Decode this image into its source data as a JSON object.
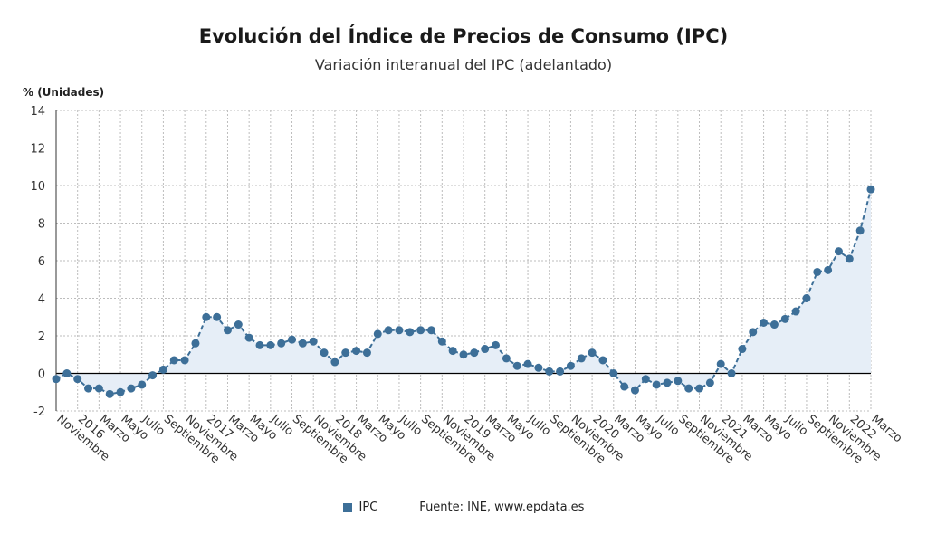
{
  "header": {
    "title": "Evolución del Índice de Precios de Consumo (IPC)",
    "subtitle": "Variación interanual del IPC (adelantado)"
  },
  "footer": {
    "legend_label": "IPC",
    "source": "Fuente: INE, www.epdata.es"
  },
  "colors": {
    "series": "#3d6f98",
    "area": "#e6eef7",
    "zero_line": "#000000",
    "grid": "#bdbdbd"
  },
  "chart_data": {
    "type": "area",
    "title": "Evolución del Índice de Precios de Consumo (IPC)",
    "subtitle": "Variación interanual del IPC (adelantado)",
    "ylabel": "% (Unidades)",
    "xlabel": "",
    "ylim": [
      -2,
      14
    ],
    "yticks": [
      -2,
      0,
      2,
      4,
      6,
      8,
      10,
      12,
      14
    ],
    "grid": true,
    "legend": "bottom-center",
    "x_tick_labels": [
      "Noviembre",
      "2016",
      "Marzo",
      "Mayo",
      "Julio",
      "Septiembre",
      "Noviembre",
      "2017",
      "Marzo",
      "Mayo",
      "Julio",
      "Septiembre",
      "Noviembre",
      "2018",
      "Marzo",
      "Mayo",
      "Julio",
      "Septiembre",
      "Noviembre",
      "2019",
      "Marzo",
      "Mayo",
      "Julio",
      "Septiembre",
      "Noviembre",
      "2020",
      "Marzo",
      "Mayo",
      "Julio",
      "Septiembre",
      "Noviembre",
      "2021",
      "Marzo",
      "Mayo",
      "Julio",
      "Septiembre",
      "Noviembre",
      "2022",
      "Marzo"
    ],
    "x": [
      "2015-11",
      "2015-12",
      "2016-01",
      "2016-02",
      "2016-03",
      "2016-04",
      "2016-05",
      "2016-06",
      "2016-07",
      "2016-08",
      "2016-09",
      "2016-10",
      "2016-11",
      "2016-12",
      "2017-01",
      "2017-02",
      "2017-03",
      "2017-04",
      "2017-05",
      "2017-06",
      "2017-07",
      "2017-08",
      "2017-09",
      "2017-10",
      "2017-11",
      "2017-12",
      "2018-01",
      "2018-02",
      "2018-03",
      "2018-04",
      "2018-05",
      "2018-06",
      "2018-07",
      "2018-08",
      "2018-09",
      "2018-10",
      "2018-11",
      "2018-12",
      "2019-01",
      "2019-02",
      "2019-03",
      "2019-04",
      "2019-05",
      "2019-06",
      "2019-07",
      "2019-08",
      "2019-09",
      "2019-10",
      "2019-11",
      "2019-12",
      "2020-01",
      "2020-02",
      "2020-03",
      "2020-04",
      "2020-05",
      "2020-06",
      "2020-07",
      "2020-08",
      "2020-09",
      "2020-10",
      "2020-11",
      "2020-12",
      "2021-01",
      "2021-02",
      "2021-03",
      "2021-04",
      "2021-05",
      "2021-06",
      "2021-07",
      "2021-08",
      "2021-09",
      "2021-10",
      "2021-11",
      "2021-12",
      "2022-01",
      "2022-02",
      "2022-03"
    ],
    "series": [
      {
        "name": "IPC",
        "values": [
          -0.3,
          0.0,
          -0.3,
          -0.8,
          -0.8,
          -1.1,
          -1.0,
          -0.8,
          -0.6,
          -0.1,
          0.2,
          0.7,
          0.7,
          1.6,
          3.0,
          3.0,
          2.3,
          2.6,
          1.9,
          1.5,
          1.5,
          1.6,
          1.8,
          1.6,
          1.7,
          1.1,
          0.6,
          1.1,
          1.2,
          1.1,
          2.1,
          2.3,
          2.3,
          2.2,
          2.3,
          2.3,
          1.7,
          1.2,
          1.0,
          1.1,
          1.3,
          1.5,
          0.8,
          0.4,
          0.5,
          0.3,
          0.1,
          0.1,
          0.4,
          0.8,
          1.1,
          0.7,
          0.0,
          -0.7,
          -0.9,
          -0.3,
          -0.6,
          -0.5,
          -0.4,
          -0.8,
          -0.8,
          -0.5,
          0.5,
          0.0,
          1.3,
          2.2,
          2.7,
          2.6,
          2.9,
          3.3,
          4.0,
          5.4,
          5.5,
          6.5,
          6.1,
          7.6,
          9.8
        ]
      }
    ]
  }
}
